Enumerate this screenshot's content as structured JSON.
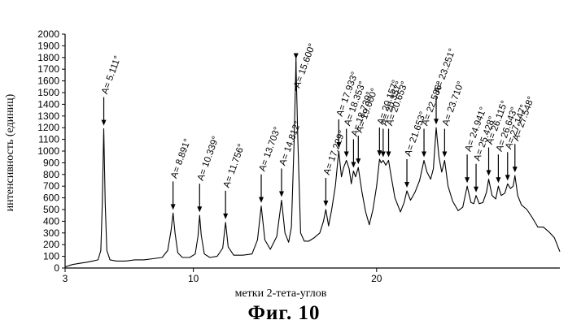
{
  "caption": "Фиг.  10",
  "chart_data": {
    "type": "line",
    "title": "",
    "xlabel": "метки 2-тета-углов",
    "ylabel": "интенсивность (единиц)",
    "xlim": [
      3,
      30
    ],
    "ylim": [
      0,
      2000
    ],
    "xticks": [
      3,
      10,
      20
    ],
    "yticks": [
      0,
      100,
      200,
      300,
      400,
      500,
      600,
      700,
      800,
      900,
      1000,
      1100,
      1200,
      1300,
      1400,
      1500,
      1600,
      1700,
      1800,
      1900,
      2000
    ],
    "grid": false,
    "legend": "none",
    "line_color": "#000000",
    "annotations": [
      {
        "label": "A= 5.111°",
        "x": 5.111,
        "y": 1190
      },
      {
        "label": "A= 8.891°",
        "x": 8.891,
        "y": 470
      },
      {
        "label": "A= 10.339°",
        "x": 10.339,
        "y": 450
      },
      {
        "label": "A= 11.756°",
        "x": 11.756,
        "y": 390
      },
      {
        "label": "A= 13.703°",
        "x": 13.703,
        "y": 530
      },
      {
        "label": "A= 14.812°",
        "x": 14.812,
        "y": 580
      },
      {
        "label": "A= 15.600°",
        "x": 15.6,
        "y": 1760
      },
      {
        "label": "A= 17.229°",
        "x": 17.229,
        "y": 500
      },
      {
        "label": "A= 17.933°",
        "x": 17.933,
        "y": 1000
      },
      {
        "label": "A= 18.353°",
        "x": 18.353,
        "y": 920
      },
      {
        "label": "A= 18.739°",
        "x": 18.739,
        "y": 830
      },
      {
        "label": "A= 19.000°",
        "x": 19.0,
        "y": 860
      },
      {
        "label": "A= 20.157°",
        "x": 20.157,
        "y": 930
      },
      {
        "label": "A= 20.357°",
        "x": 20.357,
        "y": 920
      },
      {
        "label": "A= 20.653°",
        "x": 20.653,
        "y": 920
      },
      {
        "label": "A= 21.653°",
        "x": 21.653,
        "y": 660
      },
      {
        "label": "A= 22.586°",
        "x": 22.586,
        "y": 920
      },
      {
        "label": "A= 23.251°",
        "x": 23.251,
        "y": 1200
      },
      {
        "label": "A= 23.710°",
        "x": 23.71,
        "y": 920
      },
      {
        "label": "A= 24.941°",
        "x": 24.941,
        "y": 700
      },
      {
        "label": "A= 25.428°",
        "x": 25.428,
        "y": 620
      },
      {
        "label": "A= 26.115°",
        "x": 26.115,
        "y": 760
      },
      {
        "label": "A= 26.643°",
        "x": 26.643,
        "y": 700
      },
      {
        "label": "A= 27.147°",
        "x": 27.147,
        "y": 720
      },
      {
        "label": "A= 27.548°",
        "x": 27.548,
        "y": 790
      }
    ],
    "series": [
      {
        "x": [
          3.0,
          3.4,
          3.8,
          4.2,
          4.5,
          4.8,
          4.95,
          5.03,
          5.111,
          5.19,
          5.28,
          5.45,
          5.8,
          6.3,
          6.8,
          7.3,
          7.8,
          8.3,
          8.6,
          8.78,
          8.891,
          9.0,
          9.15,
          9.4,
          9.8,
          10.1,
          10.25,
          10.339,
          10.43,
          10.6,
          10.9,
          11.3,
          11.6,
          11.756,
          11.9,
          12.2,
          12.7,
          13.2,
          13.5,
          13.703,
          13.9,
          14.2,
          14.55,
          14.812,
          15.0,
          15.2,
          15.35,
          15.5,
          15.6,
          15.7,
          15.85,
          16.05,
          16.3,
          16.6,
          16.9,
          17.1,
          17.229,
          17.38,
          17.55,
          17.75,
          17.933,
          18.08,
          18.2,
          18.353,
          18.5,
          18.62,
          18.739,
          18.85,
          19.0,
          19.2,
          19.4,
          19.6,
          19.8,
          20.0,
          20.157,
          20.25,
          20.357,
          20.5,
          20.653,
          20.8,
          21.0,
          21.3,
          21.5,
          21.653,
          21.85,
          22.1,
          22.35,
          22.586,
          22.75,
          22.95,
          23.1,
          23.251,
          23.4,
          23.55,
          23.71,
          23.9,
          24.15,
          24.45,
          24.7,
          24.941,
          25.15,
          25.3,
          25.428,
          25.6,
          25.8,
          26.0,
          26.115,
          26.3,
          26.5,
          26.643,
          26.8,
          27.0,
          27.147,
          27.3,
          27.45,
          27.548,
          27.7,
          27.9,
          28.2,
          28.5,
          28.8,
          29.1,
          29.4,
          29.7,
          30.0
        ],
        "y": [
          10,
          30,
          40,
          50,
          60,
          70,
          150,
          550,
          1190,
          550,
          150,
          70,
          60,
          60,
          70,
          70,
          80,
          90,
          150,
          320,
          470,
          300,
          130,
          90,
          90,
          120,
          270,
          450,
          280,
          120,
          90,
          100,
          170,
          390,
          180,
          110,
          110,
          120,
          240,
          530,
          240,
          160,
          270,
          580,
          300,
          220,
          350,
          1100,
          1760,
          1100,
          300,
          230,
          230,
          260,
          300,
          400,
          500,
          360,
          500,
          700,
          1000,
          780,
          860,
          920,
          850,
          720,
          830,
          780,
          860,
          650,
          480,
          370,
          500,
          700,
          930,
          900,
          920,
          880,
          920,
          780,
          600,
          480,
          560,
          660,
          580,
          650,
          750,
          920,
          820,
          760,
          850,
          1200,
          950,
          820,
          920,
          700,
          570,
          490,
          520,
          700,
          560,
          550,
          620,
          550,
          560,
          650,
          760,
          620,
          590,
          700,
          620,
          640,
          720,
          680,
          700,
          790,
          620,
          540,
          500,
          430,
          350,
          350,
          310,
          260,
          140
        ]
      }
    ]
  }
}
